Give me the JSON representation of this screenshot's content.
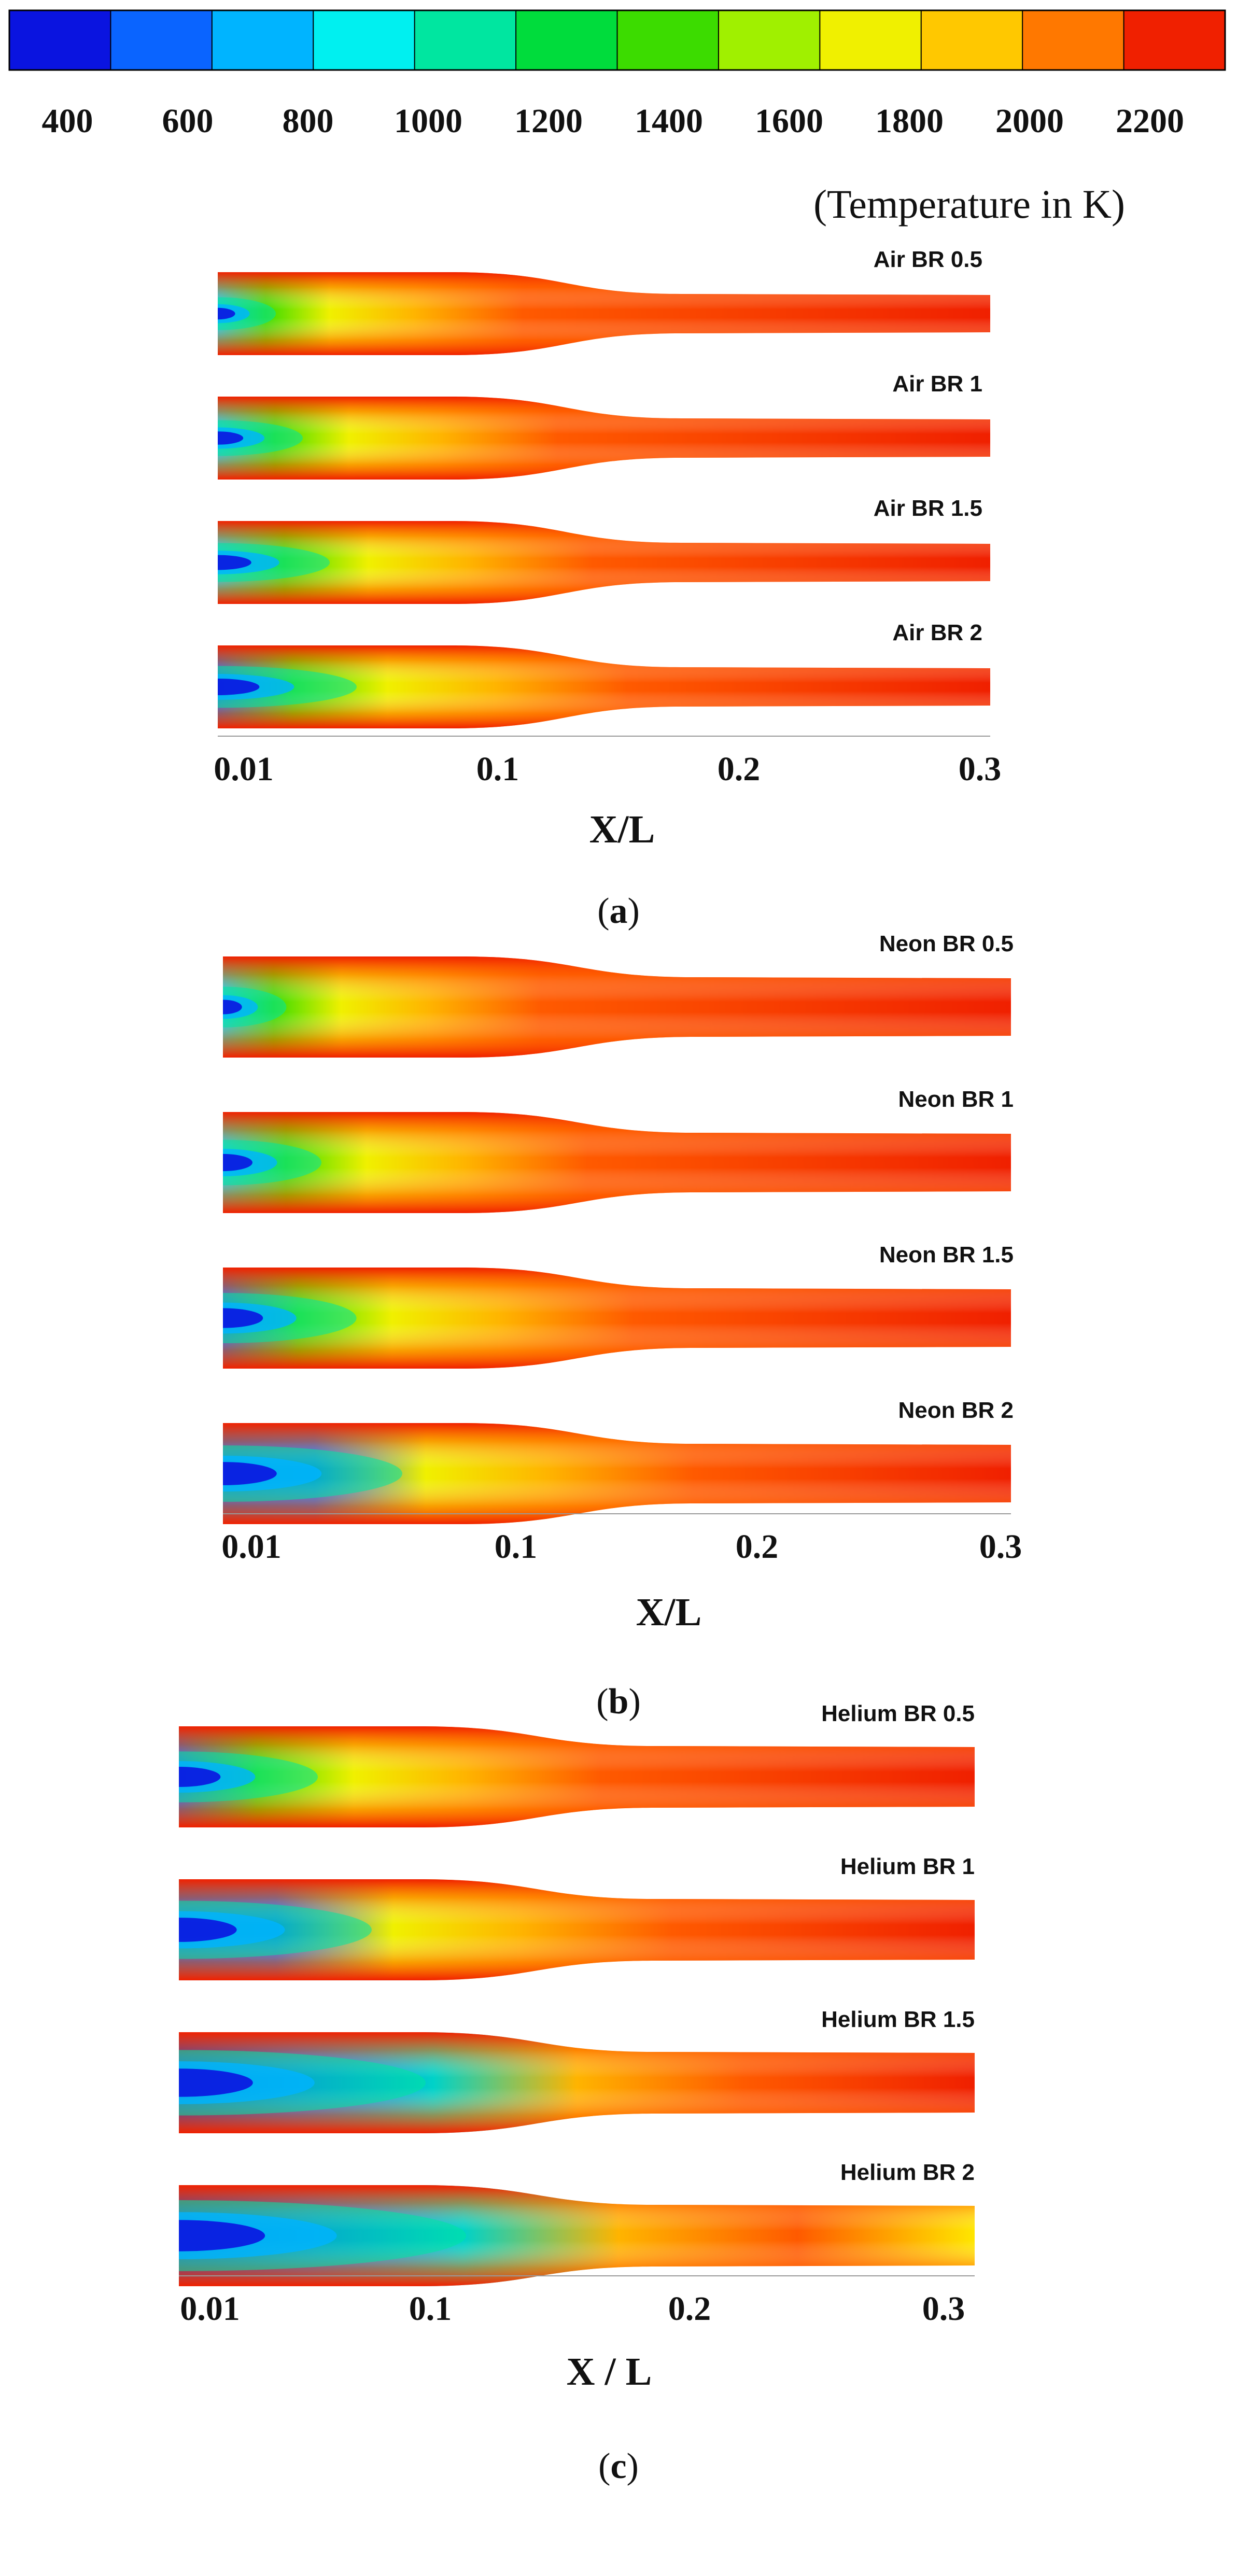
{
  "colorbar": {
    "colors": [
      "#0a14e0",
      "#0a64ff",
      "#00b4ff",
      "#00f0f0",
      "#00e6a0",
      "#00dc3c",
      "#3cdc00",
      "#a0f000",
      "#f0f000",
      "#ffc800",
      "#ff7800",
      "#f02000"
    ],
    "ticks": [
      "400",
      "600",
      "800",
      "1000",
      "1200",
      "1400",
      "1600",
      "1800",
      "2000",
      "2200"
    ],
    "caption": "(Temperature in K)"
  },
  "panels": [
    {
      "id": "a",
      "caption": "a",
      "axis_ticks": [
        "0.01",
        "0.1",
        "0.2",
        "0.3"
      ],
      "xlabel": "X/L",
      "cases": [
        {
          "label": "Air BR 0.5",
          "core_cold_fraction": 0.1
        },
        {
          "label": "Air BR 1",
          "core_cold_fraction": 0.2
        },
        {
          "label": "Air BR 1.5",
          "core_cold_fraction": 0.3
        },
        {
          "label": "Air BR 2",
          "core_cold_fraction": 0.4
        }
      ]
    },
    {
      "id": "b",
      "caption": "b",
      "axis_ticks": [
        "0.01",
        "0.1",
        "0.2",
        "0.3"
      ],
      "xlabel": "X/L",
      "cases": [
        {
          "label": "Neon BR 0.5",
          "core_cold_fraction": 0.12
        },
        {
          "label": "Neon BR 1",
          "core_cold_fraction": 0.25
        },
        {
          "label": "Neon BR 1.5",
          "core_cold_fraction": 0.38
        },
        {
          "label": "Neon BR 2",
          "core_cold_fraction": 0.55
        }
      ]
    },
    {
      "id": "c",
      "caption": "c",
      "axis_ticks": [
        "0.01",
        "0.1",
        "0.2",
        "0.3"
      ],
      "xlabel": "X / L",
      "cases": [
        {
          "label": "Helium BR 0.5",
          "core_cold_fraction": 0.4
        },
        {
          "label": "Helium BR 1",
          "core_cold_fraction": 0.6
        },
        {
          "label": "Helium BR 1.5",
          "core_cold_fraction": 0.8
        },
        {
          "label": "Helium BR 2",
          "core_cold_fraction": 0.95
        }
      ]
    }
  ]
}
